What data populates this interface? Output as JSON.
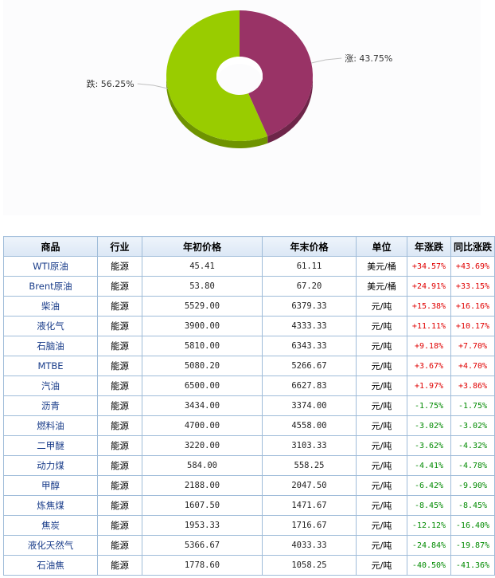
{
  "chart_data": {
    "type": "pie",
    "donut": true,
    "slices": [
      {
        "label": "涨",
        "value": 43.75,
        "display": "涨: 43.75%",
        "color": "#993366"
      },
      {
        "label": "跌",
        "value": 56.25,
        "display": "跌: 56.25%",
        "color": "#99cc00"
      }
    ]
  },
  "table": {
    "headers": [
      "商品",
      "行业",
      "年初价格",
      "年末价格",
      "单位",
      "年涨跌",
      "同比涨跌"
    ],
    "rows": [
      [
        "WTI原油",
        "能源",
        "45.41",
        "61.11",
        "美元/桶",
        "+34.57%",
        "+43.69%"
      ],
      [
        "Brent原油",
        "能源",
        "53.80",
        "67.20",
        "美元/桶",
        "+24.91%",
        "+33.15%"
      ],
      [
        "柴油",
        "能源",
        "5529.00",
        "6379.33",
        "元/吨",
        "+15.38%",
        "+16.16%"
      ],
      [
        "液化气",
        "能源",
        "3900.00",
        "4333.33",
        "元/吨",
        "+11.11%",
        "+10.17%"
      ],
      [
        "石脑油",
        "能源",
        "5810.00",
        "6343.33",
        "元/吨",
        "+9.18%",
        "+7.70%"
      ],
      [
        "MTBE",
        "能源",
        "5080.20",
        "5266.67",
        "元/吨",
        "+3.67%",
        "+4.70%"
      ],
      [
        "汽油",
        "能源",
        "6500.00",
        "6627.83",
        "元/吨",
        "+1.97%",
        "+3.86%"
      ],
      [
        "沥青",
        "能源",
        "3434.00",
        "3374.00",
        "元/吨",
        "-1.75%",
        "-1.75%"
      ],
      [
        "燃料油",
        "能源",
        "4700.00",
        "4558.00",
        "元/吨",
        "-3.02%",
        "-3.02%"
      ],
      [
        "二甲醚",
        "能源",
        "3220.00",
        "3103.33",
        "元/吨",
        "-3.62%",
        "-4.32%"
      ],
      [
        "动力煤",
        "能源",
        "584.00",
        "558.25",
        "元/吨",
        "-4.41%",
        "-4.78%"
      ],
      [
        "甲醇",
        "能源",
        "2188.00",
        "2047.50",
        "元/吨",
        "-6.42%",
        "-9.90%"
      ],
      [
        "炼焦煤",
        "能源",
        "1607.50",
        "1471.67",
        "元/吨",
        "-8.45%",
        "-8.45%"
      ],
      [
        "焦炭",
        "能源",
        "1953.33",
        "1716.67",
        "元/吨",
        "-12.12%",
        "-16.40%"
      ],
      [
        "液化天然气",
        "能源",
        "5366.67",
        "4033.33",
        "元/吨",
        "-24.84%",
        "-19.87%"
      ],
      [
        "石油焦",
        "能源",
        "1778.60",
        "1058.25",
        "元/吨",
        "-40.50%",
        "-41.36%"
      ]
    ]
  }
}
